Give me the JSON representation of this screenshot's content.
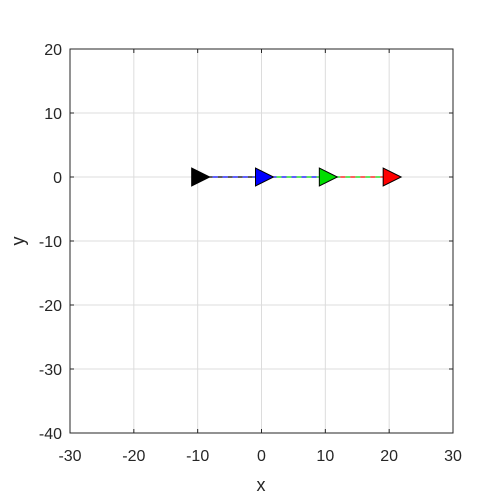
{
  "chart_data": {
    "type": "scatter",
    "xlabel": "x",
    "ylabel": "y",
    "xlim": [
      -30,
      30
    ],
    "ylim": [
      -40,
      20
    ],
    "xticks": [
      "-30",
      "-20",
      "-10",
      "0",
      "10",
      "20",
      "30"
    ],
    "yticks": [
      "20",
      "10",
      "0",
      "-10",
      "-20",
      "-30",
      "-40"
    ],
    "grid": true,
    "points": [
      {
        "x": -10,
        "y": 0,
        "color": "#000000"
      },
      {
        "x": 0,
        "y": 0,
        "color": "#0000ff"
      },
      {
        "x": 10,
        "y": 0,
        "color": "#00dd00"
      },
      {
        "x": 20,
        "y": 0,
        "color": "#ff0000"
      }
    ],
    "segments": [
      {
        "x1": -10,
        "x2": 0,
        "y": 0,
        "colors": [
          "#000000",
          "#0000ff"
        ]
      },
      {
        "x1": 0,
        "x2": 10,
        "y": 0,
        "colors": [
          "#0000ff",
          "#00dd00"
        ]
      },
      {
        "x1": 10,
        "x2": 20,
        "y": 0,
        "colors": [
          "#00dd00",
          "#ff0000"
        ]
      }
    ],
    "marker": "triangle-right"
  }
}
